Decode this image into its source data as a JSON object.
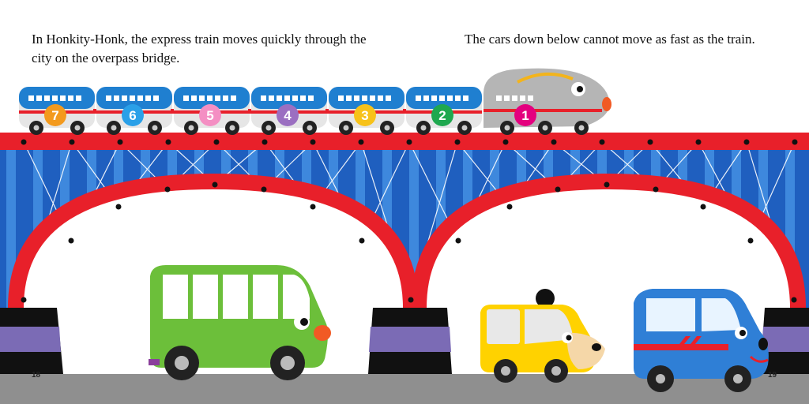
{
  "text": {
    "left": "In Honkity-Honk, the express train moves quickly through the city on the overpass bridge.",
    "right": "The cars down below cannot move as fast as the train."
  },
  "page_numbers": {
    "left": "18",
    "right": "19"
  },
  "train": {
    "cars": [
      {
        "number": "7",
        "color": "#f39a1e"
      },
      {
        "number": "6",
        "color": "#2aa0e8"
      },
      {
        "number": "5",
        "color": "#f48fc3"
      },
      {
        "number": "4",
        "color": "#9b6fc1"
      },
      {
        "number": "3",
        "color": "#f7c21a"
      },
      {
        "number": "2",
        "color": "#1fa84f"
      },
      {
        "number": "1",
        "color": "#e4007f"
      }
    ]
  },
  "colors": {
    "bridge_red": "#e8202a",
    "bridge_blue": "#1f5fbf",
    "bridge_blue_light": "#3e88dd",
    "pier_purple": "#7b6bb5",
    "road": "#8f8f8f",
    "bus_green": "#6cbf3a",
    "taxi_yellow": "#ffd200",
    "van_blue": "#2f7fd6"
  }
}
